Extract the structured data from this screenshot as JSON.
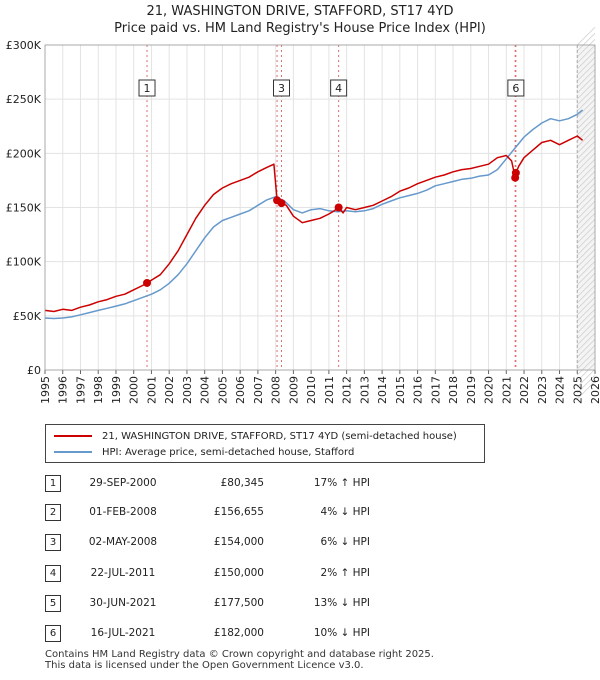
{
  "header": {
    "title_line1": "21, WASHINGTON DRIVE, STAFFORD, ST17 4YD",
    "title_line2": "Price paid vs. HM Land Registry's House Price Index (HPI)"
  },
  "chart_data": {
    "type": "line",
    "title": "Price paid vs. HM Land Registry's House Price Index (HPI)",
    "x_range": [
      1995,
      2026
    ],
    "y_range": [
      0,
      300000
    ],
    "y_ticks": [
      {
        "value": 0,
        "label": "£0"
      },
      {
        "value": 50000,
        "label": "£50K"
      },
      {
        "value": 100000,
        "label": "£100K"
      },
      {
        "value": 150000,
        "label": "£150K"
      },
      {
        "value": 200000,
        "label": "£200K"
      },
      {
        "value": 250000,
        "label": "£250K"
      },
      {
        "value": 300000,
        "label": "£300K"
      }
    ],
    "x_ticks": [
      "1995",
      "1996",
      "1997",
      "1998",
      "1999",
      "2000",
      "2001",
      "2002",
      "2003",
      "2004",
      "2005",
      "2006",
      "2007",
      "2008",
      "2009",
      "2010",
      "2011",
      "2012",
      "2013",
      "2014",
      "2015",
      "2016",
      "2017",
      "2018",
      "2019",
      "2020",
      "2021",
      "2022",
      "2023",
      "2024",
      "2025",
      "2026"
    ],
    "series": [
      {
        "name": "21, WASHINGTON DRIVE, STAFFORD, ST17 4YD (semi-detached house)",
        "color": "#cc0000",
        "x": [
          1995.0,
          1995.5,
          1996.0,
          1996.5,
          1997.0,
          1997.5,
          1998.0,
          1998.5,
          1999.0,
          1999.5,
          2000.0,
          2000.5,
          2000.75,
          2001.0,
          2001.5,
          2002.0,
          2002.5,
          2003.0,
          2003.5,
          2004.0,
          2004.5,
          2005.0,
          2005.5,
          2006.0,
          2006.5,
          2007.0,
          2007.5,
          2007.9,
          2008.08,
          2008.33,
          2008.6,
          2009.0,
          2009.5,
          2010.0,
          2010.5,
          2011.0,
          2011.3,
          2011.55,
          2011.8,
          2012.0,
          2012.5,
          2013.0,
          2013.5,
          2014.0,
          2014.5,
          2015.0,
          2015.5,
          2016.0,
          2016.5,
          2017.0,
          2017.5,
          2018.0,
          2018.5,
          2019.0,
          2019.5,
          2020.0,
          2020.5,
          2021.0,
          2021.3,
          2021.5,
          2021.54,
          2021.7,
          2022.0,
          2022.5,
          2023.0,
          2023.5,
          2024.0,
          2024.5,
          2025.0,
          2025.3
        ],
        "y": [
          55000,
          54000,
          56000,
          55000,
          58000,
          60000,
          63000,
          65000,
          68000,
          70000,
          74000,
          78000,
          80345,
          83000,
          88000,
          98000,
          110000,
          125000,
          140000,
          152000,
          162000,
          168000,
          172000,
          175000,
          178000,
          183000,
          187000,
          190000,
          156655,
          154000,
          152000,
          142000,
          136000,
          138000,
          140000,
          144000,
          147000,
          150000,
          145000,
          150000,
          148000,
          150000,
          152000,
          156000,
          160000,
          165000,
          168000,
          172000,
          175000,
          178000,
          180000,
          183000,
          185000,
          186000,
          188000,
          190000,
          196000,
          198000,
          193000,
          177500,
          182000,
          188000,
          196000,
          203000,
          210000,
          212000,
          208000,
          212000,
          216000,
          212000
        ]
      },
      {
        "name": "HPI: Average price, semi-detached house, Stafford",
        "color": "#6699cc",
        "x": [
          1995.0,
          1995.5,
          1996.0,
          1996.5,
          1997.0,
          1997.5,
          1998.0,
          1998.5,
          1999.0,
          1999.5,
          2000.0,
          2000.5,
          2001.0,
          2001.5,
          2002.0,
          2002.5,
          2003.0,
          2003.5,
          2004.0,
          2004.5,
          2005.0,
          2005.5,
          2006.0,
          2006.5,
          2007.0,
          2007.5,
          2008.0,
          2008.5,
          2009.0,
          2009.5,
          2010.0,
          2010.5,
          2011.0,
          2011.5,
          2012.0,
          2012.5,
          2013.0,
          2013.5,
          2014.0,
          2014.5,
          2015.0,
          2015.5,
          2016.0,
          2016.5,
          2017.0,
          2017.5,
          2018.0,
          2018.5,
          2019.0,
          2019.5,
          2020.0,
          2020.5,
          2021.0,
          2021.5,
          2022.0,
          2022.5,
          2023.0,
          2023.5,
          2024.0,
          2024.5,
          2025.0,
          2025.3
        ],
        "y": [
          48000,
          47500,
          48000,
          49000,
          51000,
          53000,
          55000,
          57000,
          59000,
          61000,
          64000,
          67000,
          70000,
          74000,
          80000,
          88000,
          98000,
          110000,
          122000,
          132000,
          138000,
          141000,
          144000,
          147000,
          152000,
          157000,
          160000,
          156000,
          148000,
          145000,
          148000,
          149000,
          147000,
          146000,
          147000,
          146000,
          147000,
          149000,
          153000,
          156000,
          159000,
          161000,
          163000,
          166000,
          170000,
          172000,
          174000,
          176000,
          177000,
          179000,
          180000,
          185000,
          195000,
          205000,
          215000,
          222000,
          228000,
          232000,
          230000,
          232000,
          236000,
          240000
        ]
      }
    ],
    "sales": [
      {
        "id": "1",
        "x": 2000.75,
        "price": 80345
      },
      {
        "id": "2",
        "x": 2008.08,
        "price": 156655
      },
      {
        "id": "3",
        "x": 2008.33,
        "price": 154000
      },
      {
        "id": "4",
        "x": 2011.55,
        "price": 150000
      },
      {
        "id": "5",
        "x": 2021.5,
        "price": 177500
      },
      {
        "id": "6",
        "x": 2021.54,
        "price": 182000
      }
    ],
    "marker_labels": [
      {
        "id": "1",
        "x": 2000.75
      },
      {
        "id": "3",
        "x": 2008.33
      },
      {
        "id": "4",
        "x": 2011.55
      },
      {
        "id": "6",
        "x": 2021.54
      }
    ],
    "forecast_start_x": 2025.0
  },
  "legend": {
    "items": [
      {
        "label": "21, WASHINGTON DRIVE, STAFFORD, ST17 4YD (semi-detached house)",
        "color": "#cc0000"
      },
      {
        "label": "HPI: Average price, semi-detached house, Stafford",
        "color": "#6699cc"
      }
    ]
  },
  "transactions": [
    {
      "num": "1",
      "date": "29-SEP-2000",
      "price": "£80,345",
      "hpi": "17% ↑ HPI"
    },
    {
      "num": "2",
      "date": "01-FEB-2008",
      "price": "£156,655",
      "hpi": "4% ↓ HPI"
    },
    {
      "num": "3",
      "date": "02-MAY-2008",
      "price": "£154,000",
      "hpi": "6% ↓ HPI"
    },
    {
      "num": "4",
      "date": "22-JUL-2011",
      "price": "£150,000",
      "hpi": "2% ↑ HPI"
    },
    {
      "num": "5",
      "date": "30-JUN-2021",
      "price": "£177,500",
      "hpi": "13% ↓ HPI"
    },
    {
      "num": "6",
      "date": "16-JUL-2021",
      "price": "£182,000",
      "hpi": "10% ↓ HPI"
    }
  ],
  "footer": {
    "line1": "Contains HM Land Registry data © Crown copyright and database right 2025.",
    "line2": "This data is licensed under the Open Government Licence v3.0."
  }
}
